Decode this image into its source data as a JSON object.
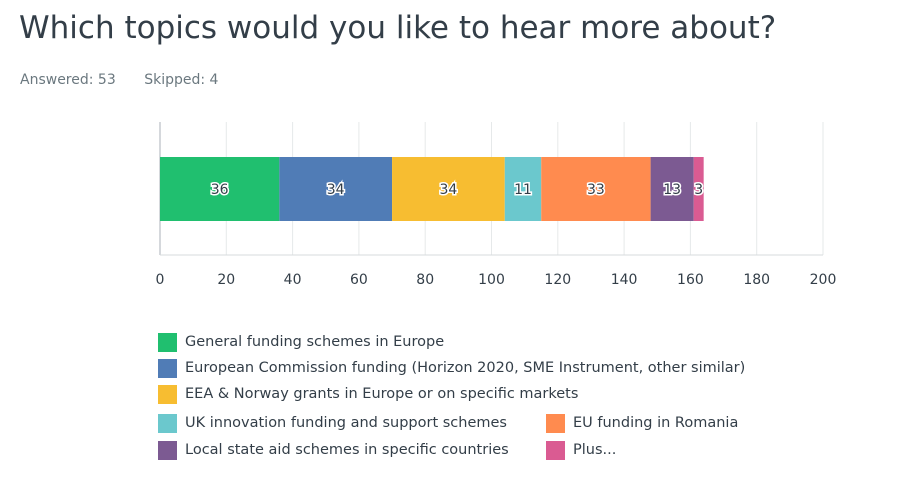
{
  "title": "Which topics would you like to hear more about?",
  "answered": "Answered: 53",
  "skipped": "Skipped: 4",
  "chart_data": {
    "type": "bar",
    "stacked": true,
    "orientation": "horizontal",
    "xlim": [
      0,
      200
    ],
    "xticks": [
      0,
      20,
      40,
      60,
      80,
      100,
      120,
      140,
      160,
      180,
      200
    ],
    "grid": true,
    "legend_position": "bottom",
    "series": [
      {
        "name": "General funding schemes in Europe",
        "value": 36,
        "color": "#20bf6f"
      },
      {
        "name": "European Commission funding (Horizon 2020, SME Instrument, other similar)",
        "value": 34,
        "color": "#507cb6"
      },
      {
        "name": "EEA & Norway grants in Europe or on specific markets",
        "value": 34,
        "color": "#f7bd31"
      },
      {
        "name": "UK innovation funding and support schemes",
        "value": 11,
        "color": "#6bc8cd"
      },
      {
        "name": "EU funding in Romania",
        "value": 33,
        "color": "#ff8b4f"
      },
      {
        "name": "Local state aid schemes in specific countries",
        "value": 13,
        "color": "#7c5a92"
      },
      {
        "name": "Plus...",
        "value": 3,
        "color": "#da5b92"
      }
    ]
  }
}
